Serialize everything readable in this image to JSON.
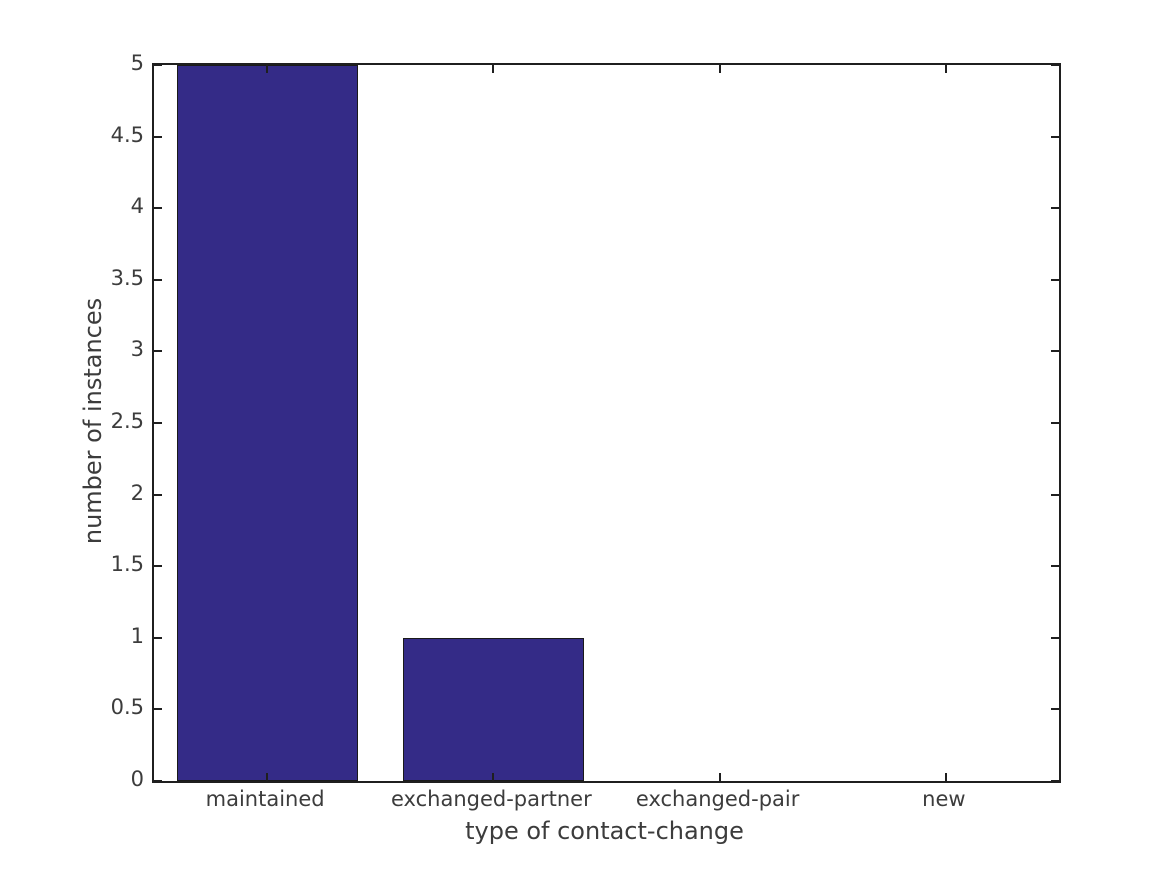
{
  "chart_data": {
    "type": "bar",
    "title": "",
    "xlabel": "type of contact-change",
    "ylabel": "number of instances",
    "categories": [
      "maintained",
      "exchanged-partner",
      "exchanged-pair",
      "new"
    ],
    "values": [
      5,
      1,
      0,
      0
    ],
    "ylim": [
      0,
      5
    ],
    "ytick_values": [
      0,
      0.5,
      1,
      1.5,
      2,
      2.5,
      3,
      3.5,
      4,
      4.5,
      5
    ],
    "ytick_labels": [
      "0",
      "0.5",
      "1",
      "1.5",
      "2",
      "2.5",
      "3",
      "3.5",
      "4",
      "4.5",
      "5"
    ],
    "bar_width_fraction": 0.8,
    "bar_color": "#342b87",
    "bar_edge_color": "#1a1a1a",
    "axis_color": "#1f1f1f",
    "text_color": "#3c3c3c",
    "background": "#ffffff",
    "grid": false,
    "legend": null,
    "box": true,
    "tick_direction": "in"
  }
}
